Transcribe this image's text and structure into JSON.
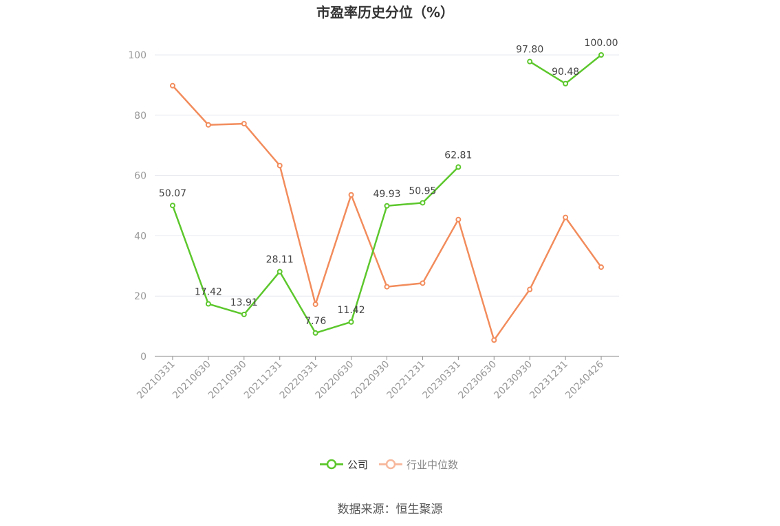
{
  "chart_data": {
    "type": "line",
    "title": "市盈率历史分位（%）",
    "categories": [
      "20210331",
      "20210630",
      "20210930",
      "20211231",
      "20220331",
      "20220630",
      "20220930",
      "20221231",
      "20230331",
      "20230630",
      "20230930",
      "20231231",
      "20240426"
    ],
    "ylim": [
      0,
      100
    ],
    "yticks": [
      0,
      20,
      40,
      60,
      80,
      100
    ],
    "grid": true,
    "legend_position": "bottom",
    "series": [
      {
        "name": "公司",
        "color": "#5cc72c",
        "values": [
          50.07,
          17.42,
          13.91,
          28.11,
          7.76,
          11.42,
          49.93,
          50.95,
          62.81,
          null,
          97.8,
          90.48,
          100.0
        ],
        "labels": [
          "50.07",
          "17.42",
          "13.91",
          "28.11",
          "7.76",
          "11.42",
          "49.93",
          "50.95",
          "62.81",
          "",
          "97.80",
          "90.48",
          "100.00"
        ]
      },
      {
        "name": "行业中位数",
        "color": "#f28c5c",
        "values": [
          89.8,
          76.8,
          77.2,
          63.3,
          17.3,
          53.6,
          23.1,
          24.3,
          45.4,
          5.4,
          22.2,
          46.1,
          29.6
        ]
      }
    ]
  },
  "source": "数据来源：恒生聚源"
}
